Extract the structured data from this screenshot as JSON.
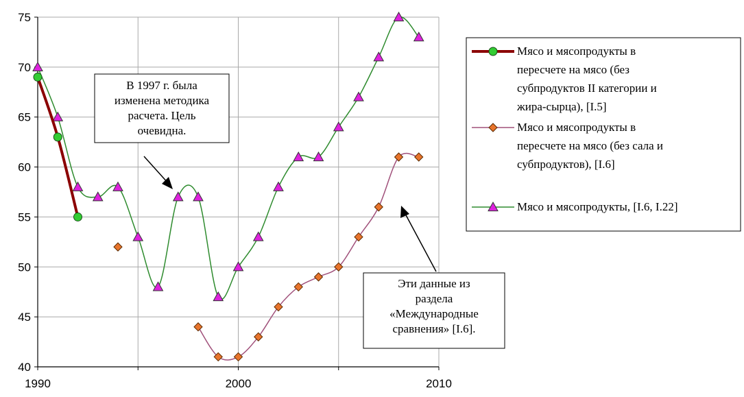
{
  "chart_data": {
    "type": "line",
    "xlim": [
      1990,
      2010
    ],
    "ylim": [
      40,
      75
    ],
    "x_ticks": [
      1990,
      2000,
      2010
    ],
    "y_ticks": [
      40,
      45,
      50,
      55,
      60,
      65,
      70,
      75
    ],
    "grid": true,
    "legend_position": "right",
    "series": [
      {
        "name": "Мясо и мясопродукты в пересчете на мясо (без субпродуктов II категории и жира-сырца), [I.5]",
        "legend_lines": [
          "Мясо и мясопродукты в",
          "пересчете на мясо (без",
          "субпродуктов II категории и",
          "жира-сырца), [I.5]"
        ],
        "color": "#8B0000",
        "marker": "circle",
        "marker_color": "#33CC33",
        "x": [
          1990,
          1991,
          1992
        ],
        "y": [
          69,
          63,
          55
        ]
      },
      {
        "name": "Мясо и мясопродукты в пересчете на мясо (без сала и субпродуктов), [I.6]",
        "legend_lines": [
          "Мясо и мясопродукты в",
          "пересчете на мясо (без сала и",
          "субпродуктов), [I.6]"
        ],
        "color": "#A0507A",
        "marker": "diamond",
        "marker_color": "#E8742C",
        "x": [
          1994,
          1998,
          1999,
          2000,
          2001,
          2002,
          2003,
          2004,
          2005,
          2006,
          2007,
          2008,
          2009
        ],
        "y": [
          52,
          44,
          41,
          41,
          43,
          46,
          48,
          49,
          50,
          53,
          56,
          61,
          61
        ]
      },
      {
        "name": "Мясо и мясопродукты, [I.6, I.22]",
        "legend_lines": [
          "Мясо и мясопродукты, [I.6, I.22]"
        ],
        "color": "#2E8B2E",
        "marker": "triangle",
        "marker_color": "#DD22DD",
        "x": [
          1990,
          1991,
          1992,
          1993,
          1994,
          1995,
          1996,
          1997,
          1998,
          1999,
          2000,
          2001,
          2002,
          2003,
          2004,
          2005,
          2006,
          2007,
          2008,
          2009
        ],
        "y": [
          70,
          65,
          58,
          57,
          58,
          53,
          48,
          57,
          57,
          47,
          50,
          53,
          58,
          61,
          61,
          64,
          67,
          71,
          75,
          73
        ]
      }
    ],
    "annotations": [
      {
        "lines": [
          "В 1997 г. была",
          "изменена методика",
          "расчета. Цель",
          "очевидна."
        ]
      },
      {
        "lines": [
          "Эти данные из",
          "раздела",
          "«Международные",
          "сравнения» [I.6]."
        ]
      }
    ]
  }
}
